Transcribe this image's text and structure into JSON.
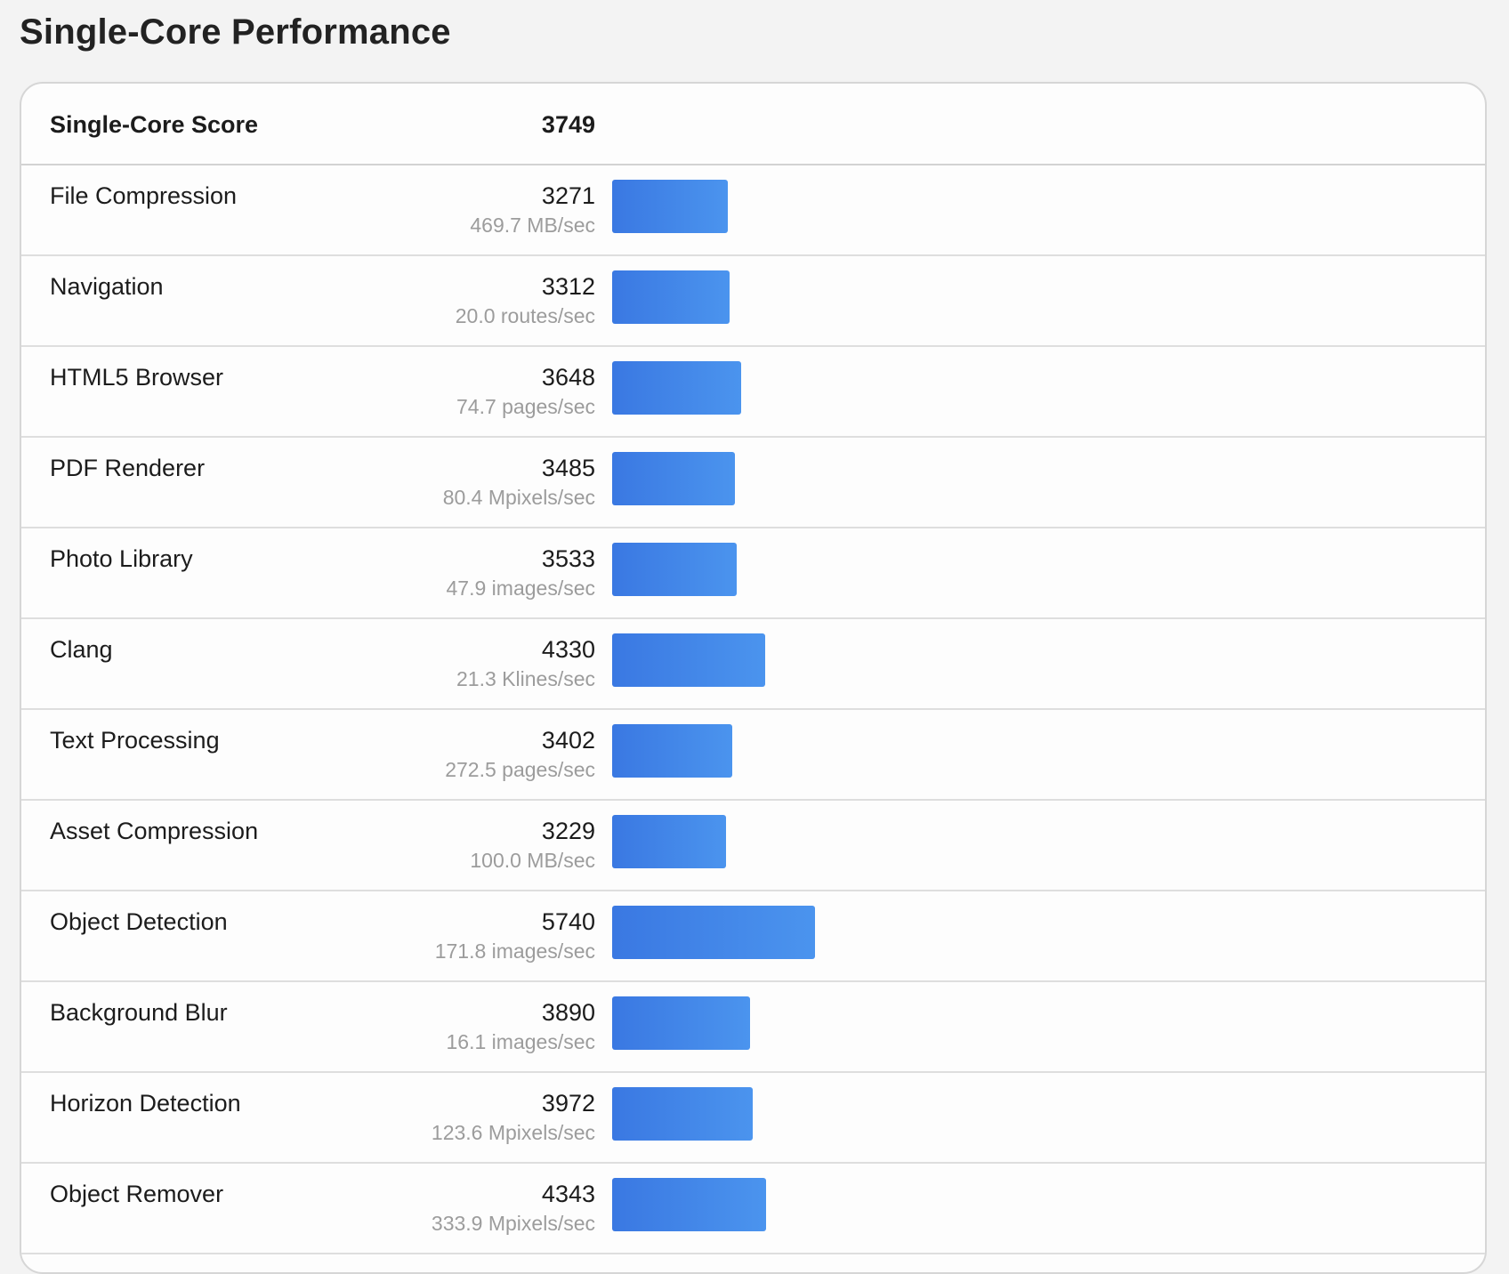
{
  "page": {
    "title": "Single-Core Performance"
  },
  "summary": {
    "label": "Single-Core Score",
    "score": "3749"
  },
  "colors": {
    "bar_start": "#3a78e2",
    "bar_end": "#4b94ee",
    "background": "#f3f3f3"
  },
  "benchmarks": [
    {
      "name": "File Compression",
      "score": "3271",
      "rate": "469.7 MB/sec"
    },
    {
      "name": "Navigation",
      "score": "3312",
      "rate": "20.0 routes/sec"
    },
    {
      "name": "HTML5 Browser",
      "score": "3648",
      "rate": "74.7 pages/sec"
    },
    {
      "name": "PDF Renderer",
      "score": "3485",
      "rate": "80.4 Mpixels/sec"
    },
    {
      "name": "Photo Library",
      "score": "3533",
      "rate": "47.9 images/sec"
    },
    {
      "name": "Clang",
      "score": "4330",
      "rate": "21.3 Klines/sec"
    },
    {
      "name": "Text Processing",
      "score": "3402",
      "rate": "272.5 pages/sec"
    },
    {
      "name": "Asset Compression",
      "score": "3229",
      "rate": "100.0 MB/sec"
    },
    {
      "name": "Object Detection",
      "score": "5740",
      "rate": "171.8 images/sec"
    },
    {
      "name": "Background Blur",
      "score": "3890",
      "rate": "16.1 images/sec"
    },
    {
      "name": "Horizon Detection",
      "score": "3972",
      "rate": "123.6 Mpixels/sec"
    },
    {
      "name": "Object Remover",
      "score": "4343",
      "rate": "333.9 Mpixels/sec"
    }
  ]
}
